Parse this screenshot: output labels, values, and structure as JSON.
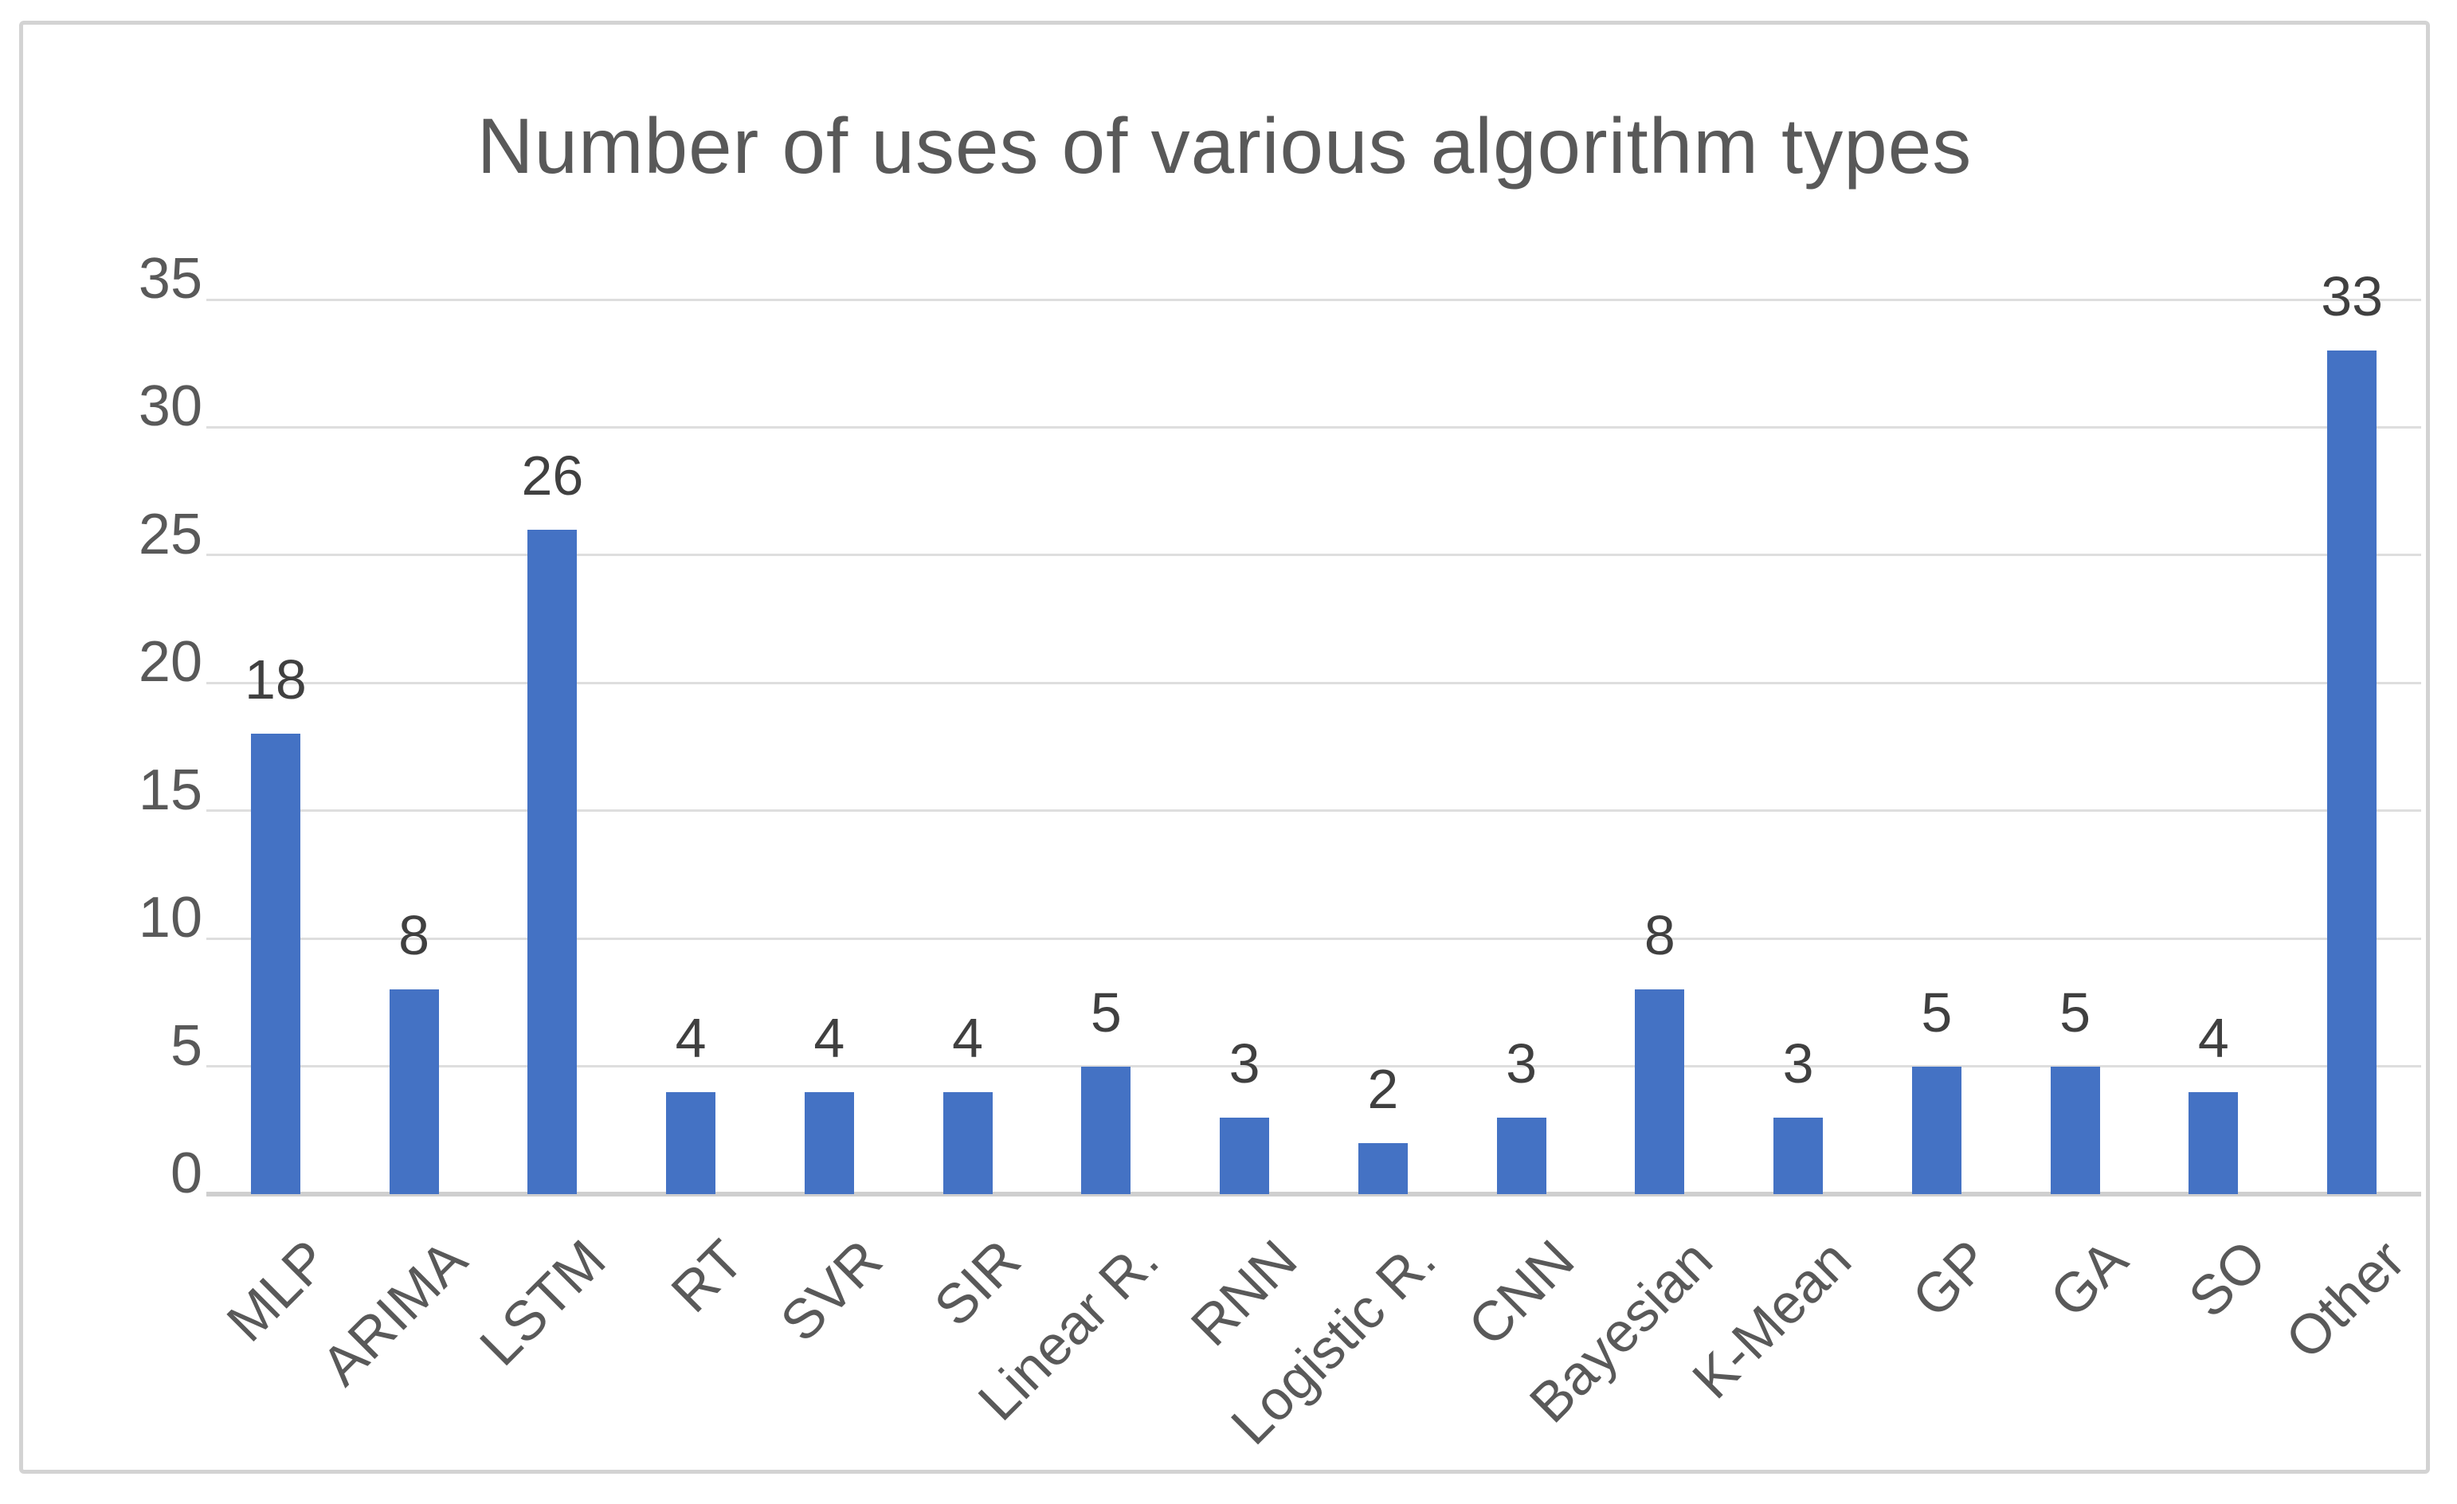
{
  "chart_data": {
    "type": "bar",
    "title": "Number of uses of various algorithm types",
    "categories": [
      "MLP",
      "ARIMA",
      "LSTM",
      "RT",
      "SVR",
      "SIR",
      "Linear R.",
      "RNN",
      "Logistic R.",
      "CNN",
      "Bayesian",
      "K-Mean",
      "GP",
      "GA",
      "SO",
      "Other"
    ],
    "values": [
      18,
      8,
      26,
      4,
      4,
      4,
      5,
      3,
      2,
      3,
      8,
      3,
      5,
      5,
      4,
      33
    ],
    "data_labels": [
      18,
      8,
      26,
      4,
      4,
      4,
      5,
      3,
      2,
      3,
      8,
      3,
      5,
      5,
      4,
      33
    ],
    "xlabel": "",
    "ylabel": "",
    "ylim": [
      0,
      35
    ],
    "yticks": [
      35,
      30,
      25,
      20,
      15,
      10,
      5,
      0
    ],
    "grid": "horizontal-only",
    "legend_position": "none",
    "bar_color": "#4472C4",
    "gridline_color": "#dedede",
    "axis_label_color": "#595959",
    "value_label_color": "#404040",
    "title_color": "#595959",
    "frame_border_color": "#d3d3d3"
  }
}
